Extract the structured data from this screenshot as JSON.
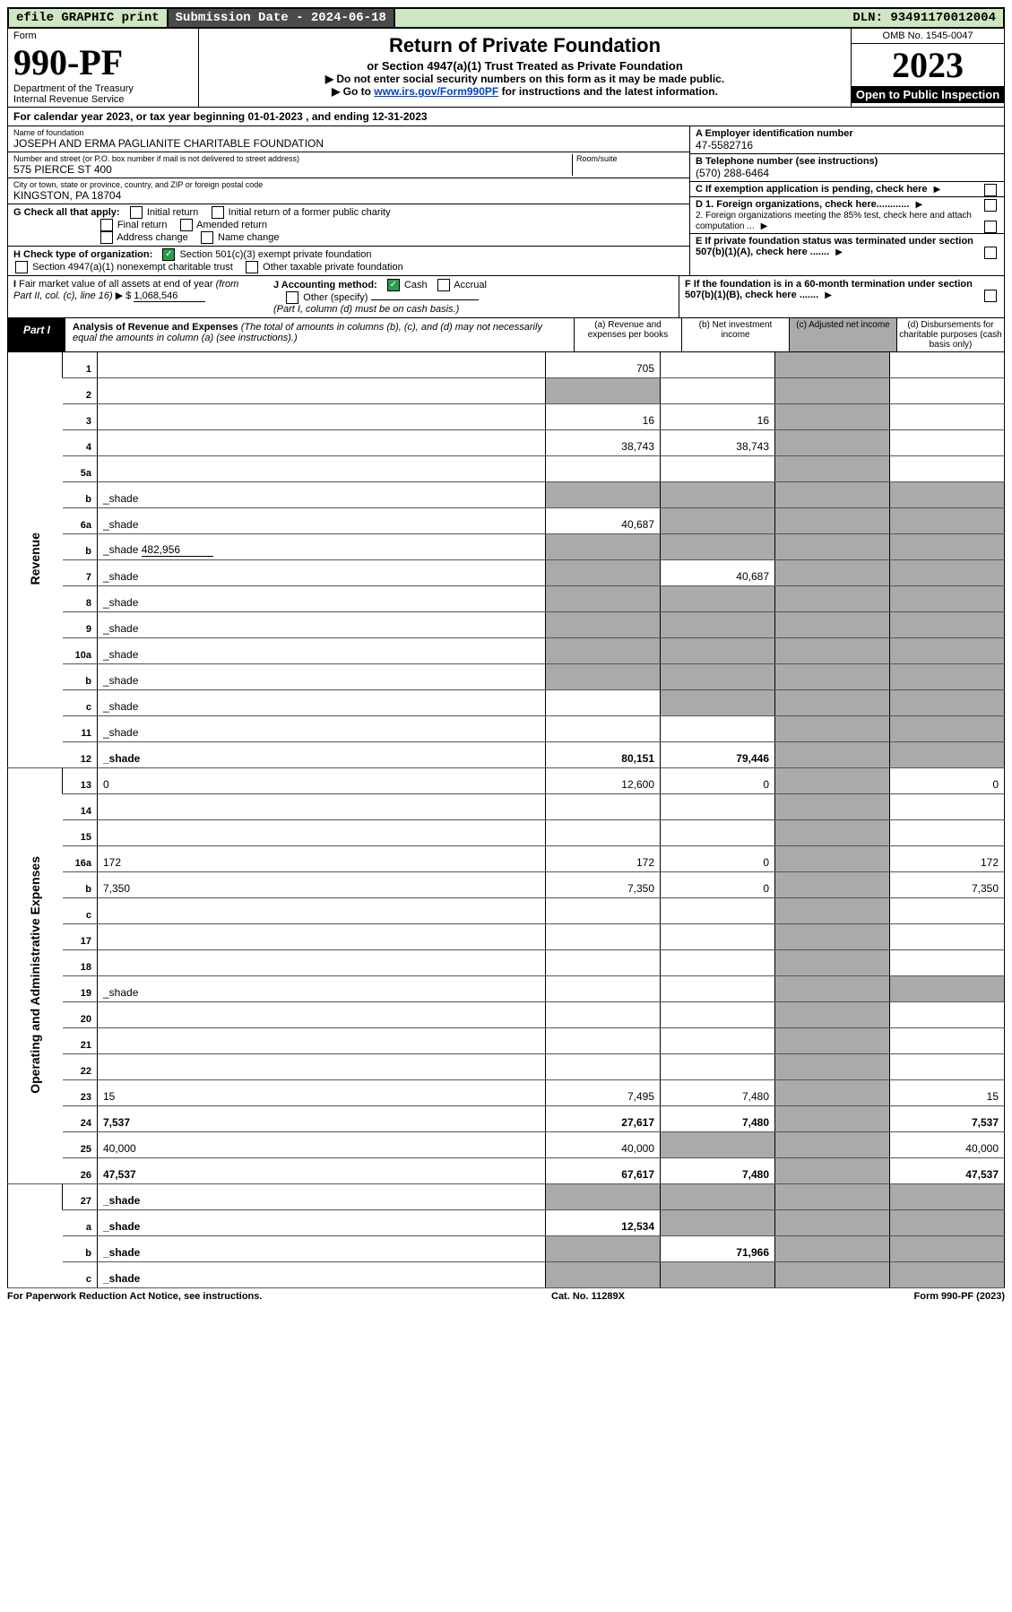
{
  "topbar": {
    "efile": "efile GRAPHIC print",
    "submission": "Submission Date - 2024-06-18",
    "dln": "DLN: 93491170012004"
  },
  "header": {
    "form_label": "Form",
    "form_num": "990-PF",
    "dept": "Department of the Treasury\nInternal Revenue Service",
    "title": "Return of Private Foundation",
    "subtitle": "or Section 4947(a)(1) Trust Treated as Private Foundation",
    "instr1": "▶ Do not enter social security numbers on this form as it may be made public.",
    "instr2_pre": "▶ Go to ",
    "instr2_link": "www.irs.gov/Form990PF",
    "instr2_post": " for instructions and the latest information.",
    "omb": "OMB No. 1545-0047",
    "year": "2023",
    "open": "Open to Public Inspection"
  },
  "cal": "For calendar year 2023, or tax year beginning 01-01-2023             , and ending 12-31-2023",
  "ident": {
    "name_lbl": "Name of foundation",
    "name": "JOSEPH AND ERMA PAGLIANITE CHARITABLE FOUNDATION",
    "addr_lbl": "Number and street (or P.O. box number if mail is not delivered to street address)",
    "addr": "575 PIERCE ST 400",
    "room_lbl": "Room/suite",
    "city_lbl": "City or town, state or province, country, and ZIP or foreign postal code",
    "city": "KINGSTON, PA  18704",
    "a_lbl": "A Employer identification number",
    "a_val": "47-5582716",
    "b_lbl": "B Telephone number (see instructions)",
    "b_val": "(570) 288-6464",
    "c_lbl": "C If exemption application is pending, check here",
    "d1": "D 1. Foreign organizations, check here............",
    "d2": "2. Foreign organizations meeting the 85% test, check here and attach computation ...",
    "e": "E  If private foundation status was terminated under section 507(b)(1)(A), check here .......",
    "f": "F  If the foundation is in a 60-month termination under section 507(b)(1)(B), check here .......",
    "g_lbl": "G Check all that apply:",
    "g_opts": [
      "Initial return",
      "Initial return of a former public charity",
      "Final return",
      "Amended return",
      "Address change",
      "Name change"
    ],
    "h_lbl": "H Check type of organization:",
    "h1": "Section 501(c)(3) exempt private foundation",
    "h2": "Section 4947(a)(1) nonexempt charitable trust",
    "h3": "Other taxable private foundation",
    "i_lbl": "I Fair market value of all assets at end of year (from Part II, col. (c), line 16) ▶ $",
    "i_val": "1,068,546",
    "j_lbl": "J Accounting method:",
    "j1": "Cash",
    "j2": "Accrual",
    "j3": "Other (specify)",
    "j_note": "(Part I, column (d) must be on cash basis.)"
  },
  "part1": {
    "label": "Part I",
    "title": "Analysis of Revenue and Expenses",
    "note": "(The total of amounts in columns (b), (c), and (d) may not necessarily equal the amounts in column (a) (see instructions).)",
    "cols": {
      "a": "(a) Revenue and expenses per books",
      "b": "(b) Net investment income",
      "c": "(c) Adjusted net income",
      "d": "(d) Disbursements for charitable purposes (cash basis only)"
    }
  },
  "sections": {
    "rev": "Revenue",
    "exp": "Operating and Administrative Expenses"
  },
  "lines": {
    "1": {
      "n": "1",
      "d": "",
      "a": "705",
      "b": "",
      "c": ""
    },
    "2": {
      "n": "2",
      "d": "",
      "a": "—shade",
      "b": "",
      "c": ""
    },
    "3": {
      "n": "3",
      "d": "",
      "a": "16",
      "b": "16",
      "c": ""
    },
    "4": {
      "n": "4",
      "d": "",
      "a": "38,743",
      "b": "38,743",
      "c": ""
    },
    "5a": {
      "n": "5a",
      "d": "",
      "a": "",
      "b": "",
      "c": ""
    },
    "5b": {
      "n": "b",
      "d": "_shade",
      "a": "_shade",
      "b": "_shade",
      "c": "_shade"
    },
    "6a": {
      "n": "6a",
      "d": "_shade",
      "a": "40,687",
      "b": "_shade",
      "c": "_shade"
    },
    "6b": {
      "n": "b",
      "d": "_shade",
      "v": "482,956",
      "a": "_shade",
      "b": "_shade",
      "c": "_shade"
    },
    "7": {
      "n": "7",
      "d": "_shade",
      "a": "_shade",
      "b": "40,687",
      "c": "_shade"
    },
    "8": {
      "n": "8",
      "d": "_shade",
      "a": "_shade",
      "b": "_shade",
      "c": ""
    },
    "9": {
      "n": "9",
      "d": "_shade",
      "a": "_shade",
      "b": "_shade",
      "c": ""
    },
    "10a": {
      "n": "10a",
      "d": "_shade",
      "a": "_shade",
      "b": "_shade",
      "c": "_shade"
    },
    "10b": {
      "n": "b",
      "d": "_shade",
      "a": "_shade",
      "b": "_shade",
      "c": "_shade"
    },
    "10c": {
      "n": "c",
      "d": "_shade",
      "a": "",
      "b": "_shade",
      "c": ""
    },
    "11": {
      "n": "11",
      "d": "_shade",
      "a": "",
      "b": "",
      "c": ""
    },
    "12": {
      "n": "12",
      "d": "_shade",
      "a": "80,151",
      "b": "79,446",
      "c": "",
      "bold": true
    },
    "13": {
      "n": "13",
      "d": "0",
      "a": "12,600",
      "b": "0",
      "c": ""
    },
    "14": {
      "n": "14",
      "d": "",
      "a": "",
      "b": "",
      "c": ""
    },
    "15": {
      "n": "15",
      "d": "",
      "a": "",
      "b": "",
      "c": ""
    },
    "16a": {
      "n": "16a",
      "d": "172",
      "a": "172",
      "b": "0",
      "c": ""
    },
    "16b": {
      "n": "b",
      "d": "7,350",
      "a": "7,350",
      "b": "0",
      "c": ""
    },
    "16c": {
      "n": "c",
      "d": "",
      "a": "",
      "b": "",
      "c": ""
    },
    "17": {
      "n": "17",
      "d": "",
      "a": "",
      "b": "",
      "c": ""
    },
    "18": {
      "n": "18",
      "d": "",
      "a": "",
      "b": "",
      "c": ""
    },
    "19": {
      "n": "19",
      "d": "_shade",
      "a": "",
      "b": "",
      "c": ""
    },
    "20": {
      "n": "20",
      "d": "",
      "a": "",
      "b": "",
      "c": ""
    },
    "21": {
      "n": "21",
      "d": "",
      "a": "",
      "b": "",
      "c": ""
    },
    "22": {
      "n": "22",
      "d": "",
      "a": "",
      "b": "",
      "c": ""
    },
    "23": {
      "n": "23",
      "d": "15",
      "a": "7,495",
      "b": "7,480",
      "c": ""
    },
    "24": {
      "n": "24",
      "d": "7,537",
      "a": "27,617",
      "b": "7,480",
      "c": "",
      "bold": true
    },
    "25": {
      "n": "25",
      "d": "40,000",
      "a": "40,000",
      "b": "_shade",
      "c": "_shade"
    },
    "26": {
      "n": "26",
      "d": "47,537",
      "a": "67,617",
      "b": "7,480",
      "c": "",
      "bold": true
    },
    "27": {
      "n": "27",
      "d": "_shade",
      "a": "_shade",
      "b": "_shade",
      "c": "_shade",
      "bold": true
    },
    "27a": {
      "n": "a",
      "d": "_shade",
      "a": "12,534",
      "b": "_shade",
      "c": "_shade",
      "bold": true
    },
    "27b": {
      "n": "b",
      "d": "_shade",
      "a": "_shade",
      "b": "71,966",
      "c": "_shade",
      "bold": true
    },
    "27c": {
      "n": "c",
      "d": "_shade",
      "a": "_shade",
      "b": "_shade",
      "c": "",
      "bold": true
    }
  },
  "footer": {
    "left": "For Paperwork Reduction Act Notice, see instructions.",
    "mid": "Cat. No. 11289X",
    "right": "Form 990-PF (2023)"
  }
}
